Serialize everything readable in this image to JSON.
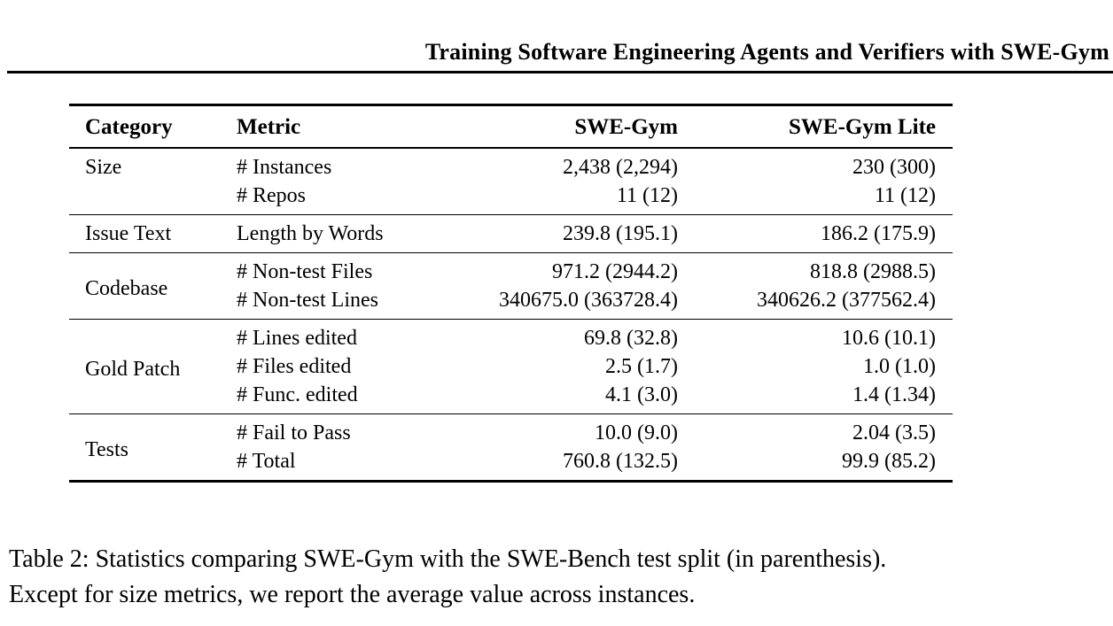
{
  "page_header": {
    "title": "Training Software Engineering Agents and Verifiers with SWE-Gym"
  },
  "table": {
    "columns": [
      "Category",
      "Metric",
      "SWE-Gym",
      "SWE-Gym Lite"
    ],
    "sections": [
      {
        "category": "Size",
        "category_align": "top",
        "rows": [
          {
            "metric": "# Instances",
            "swe_gym": "2,438 (2,294)",
            "swe_gym_lite": "230 (300)"
          },
          {
            "metric": "# Repos",
            "swe_gym": "11 (12)",
            "swe_gym_lite": "11 (12)"
          }
        ]
      },
      {
        "category": "Issue Text",
        "category_align": "middle",
        "rows": [
          {
            "metric": "Length by Words",
            "swe_gym": "239.8 (195.1)",
            "swe_gym_lite": "186.2 (175.9)"
          }
        ]
      },
      {
        "category": "Codebase",
        "category_align": "middle",
        "rows": [
          {
            "metric": "# Non-test Files",
            "swe_gym": "971.2 (2944.2)",
            "swe_gym_lite": "818.8 (2988.5)"
          },
          {
            "metric": "# Non-test Lines",
            "swe_gym": "340675.0 (363728.4)",
            "swe_gym_lite": "340626.2 (377562.4)"
          }
        ]
      },
      {
        "category": "Gold Patch",
        "category_align": "middle",
        "rows": [
          {
            "metric": "# Lines edited",
            "swe_gym": "69.8 (32.8)",
            "swe_gym_lite": "10.6 (10.1)"
          },
          {
            "metric": "# Files edited",
            "swe_gym": "2.5 (1.7)",
            "swe_gym_lite": "1.0 (1.0)"
          },
          {
            "metric": "# Func. edited",
            "swe_gym": "4.1 (3.0)",
            "swe_gym_lite": "1.4 (1.34)"
          }
        ]
      },
      {
        "category": "Tests",
        "category_align": "middle",
        "rows": [
          {
            "metric": "# Fail to Pass",
            "swe_gym": "10.0 (9.0)",
            "swe_gym_lite": "2.04 (3.5)"
          },
          {
            "metric": "# Total",
            "swe_gym": "760.8 (132.5)",
            "swe_gym_lite": "99.9 (85.2)"
          }
        ]
      }
    ]
  },
  "caption": {
    "line1": "Table 2: Statistics comparing SWE-Gym with the SWE-Bench test split (in parenthesis).",
    "line2": "Except for size metrics, we report the average value across instances."
  },
  "colors": {
    "text": "#000000",
    "background": "#ffffff",
    "rule": "#000000"
  }
}
